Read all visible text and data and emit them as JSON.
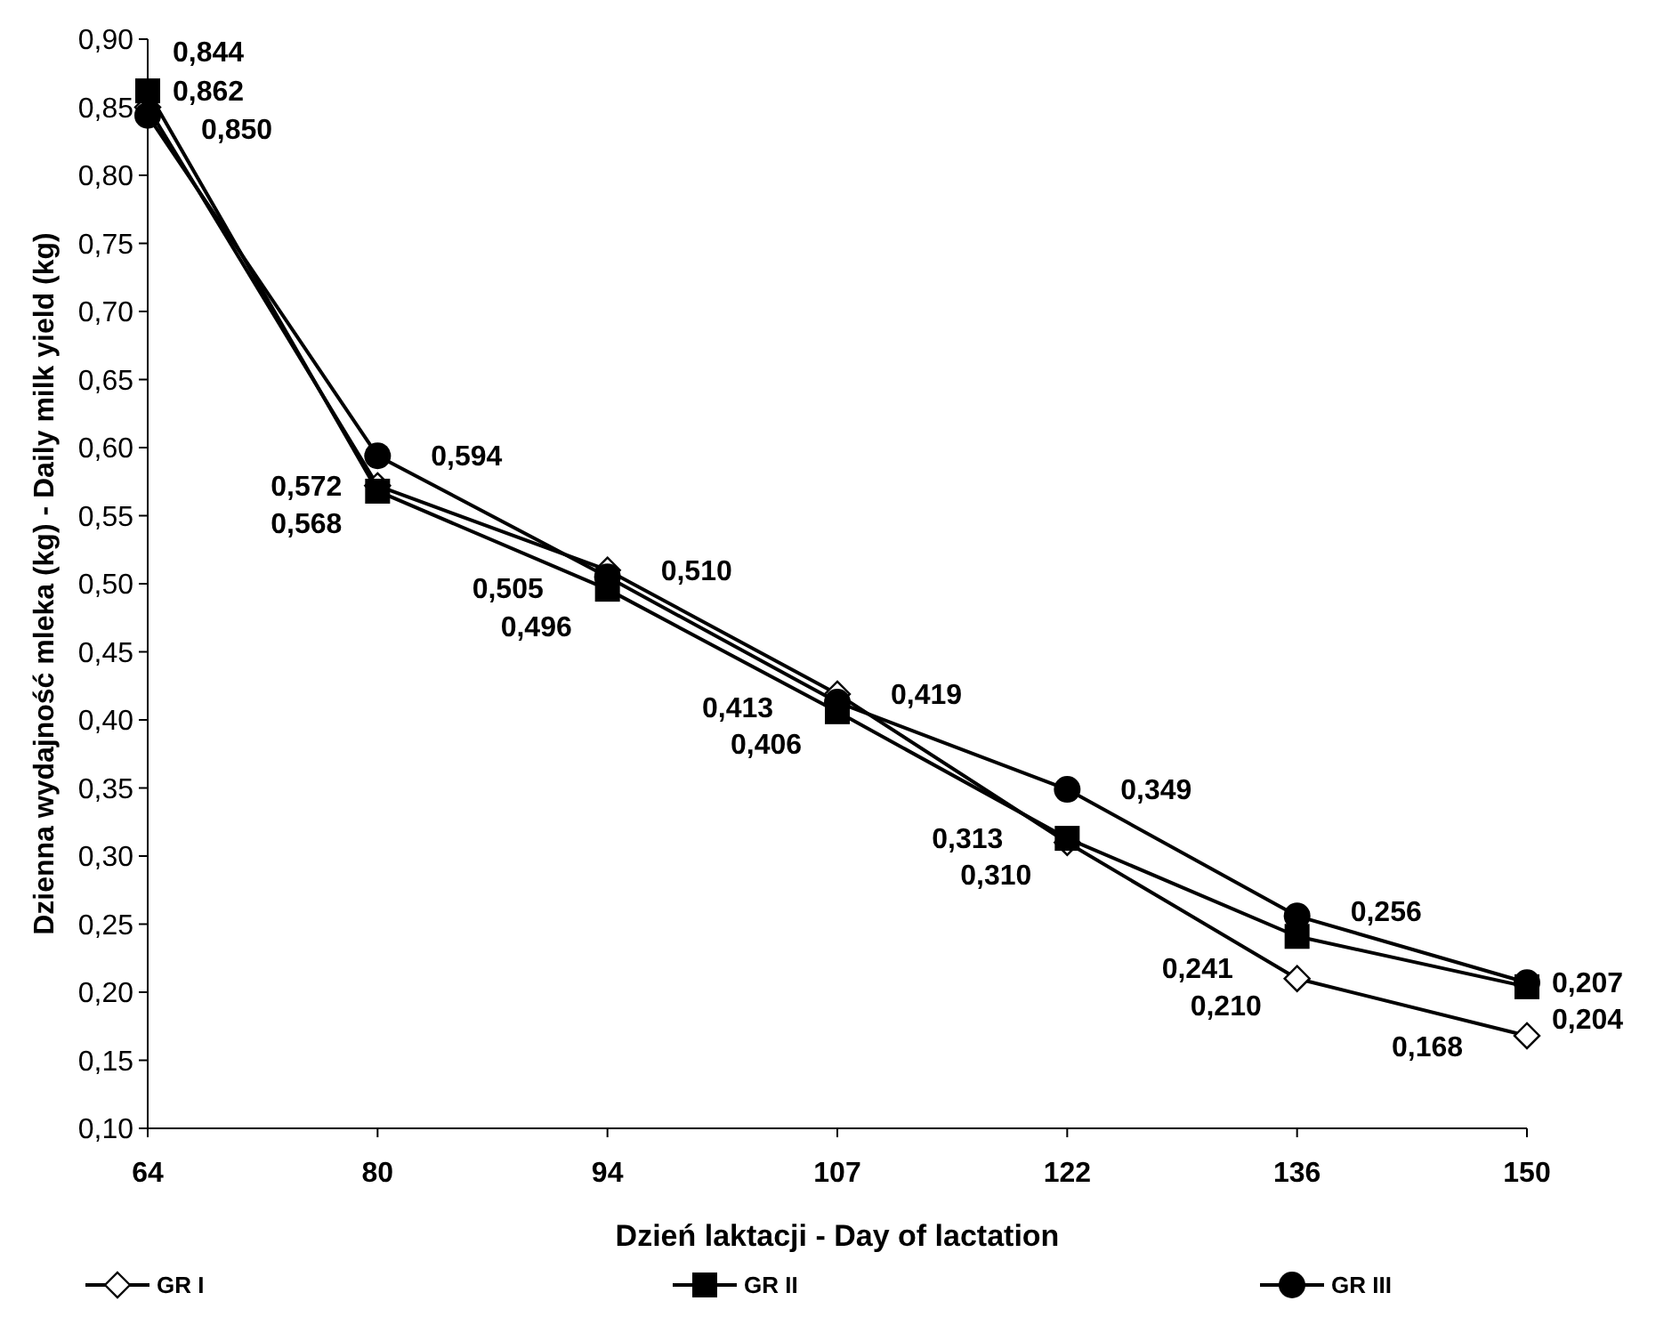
{
  "chart_data": {
    "type": "line",
    "xlabel": "Dzień laktacji - Day of lactation",
    "ylabel": "Dzienna wydajność mleka (kg) - Daily milk yield (kg)",
    "categories": [
      "64",
      "80",
      "94",
      "107",
      "122",
      "136",
      "150"
    ],
    "ylim": [
      0.1,
      0.9
    ],
    "yticks": [
      {
        "value": 0.1,
        "label": "0,10"
      },
      {
        "value": 0.15,
        "label": "0,15"
      },
      {
        "value": 0.2,
        "label": "0,20"
      },
      {
        "value": 0.25,
        "label": "0,25"
      },
      {
        "value": 0.3,
        "label": "0,30"
      },
      {
        "value": 0.35,
        "label": "0,35"
      },
      {
        "value": 0.4,
        "label": "0,40"
      },
      {
        "value": 0.45,
        "label": "0,45"
      },
      {
        "value": 0.5,
        "label": "0,50"
      },
      {
        "value": 0.55,
        "label": "0,55"
      },
      {
        "value": 0.6,
        "label": "0,60"
      },
      {
        "value": 0.65,
        "label": "0,65"
      },
      {
        "value": 0.7,
        "label": "0,70"
      },
      {
        "value": 0.75,
        "label": "0,75"
      },
      {
        "value": 0.8,
        "label": "0,80"
      },
      {
        "value": 0.85,
        "label": "0,85"
      },
      {
        "value": 0.9,
        "label": "0,90"
      }
    ],
    "grid": false,
    "legend": "bottom",
    "line_style": "solid",
    "series": [
      {
        "name": "GR I",
        "color": "#000000",
        "marker": "diamond",
        "values": [
          0.85,
          0.572,
          0.51,
          0.419,
          0.31,
          0.21,
          0.168
        ],
        "value_labels": [
          "0,850",
          "0,572",
          "0,510",
          "0,419",
          "0,310",
          "0,210",
          "0,168"
        ]
      },
      {
        "name": "GR II",
        "color": "#000000",
        "marker": "square",
        "values": [
          0.862,
          0.568,
          0.496,
          0.406,
          0.313,
          0.241,
          0.204
        ],
        "value_labels": [
          "0,862",
          "0,568",
          "0,496",
          "0,406",
          "0,313",
          "0,241",
          "0,204"
        ]
      },
      {
        "name": "GR III",
        "color": "#000000",
        "marker": "circle",
        "values": [
          0.844,
          0.594,
          0.505,
          0.413,
          0.349,
          0.256,
          0.207
        ],
        "value_labels": [
          "0,844",
          "0,594",
          "0,505",
          "0,413",
          "0,349",
          "0,256",
          "0,207"
        ]
      }
    ]
  }
}
